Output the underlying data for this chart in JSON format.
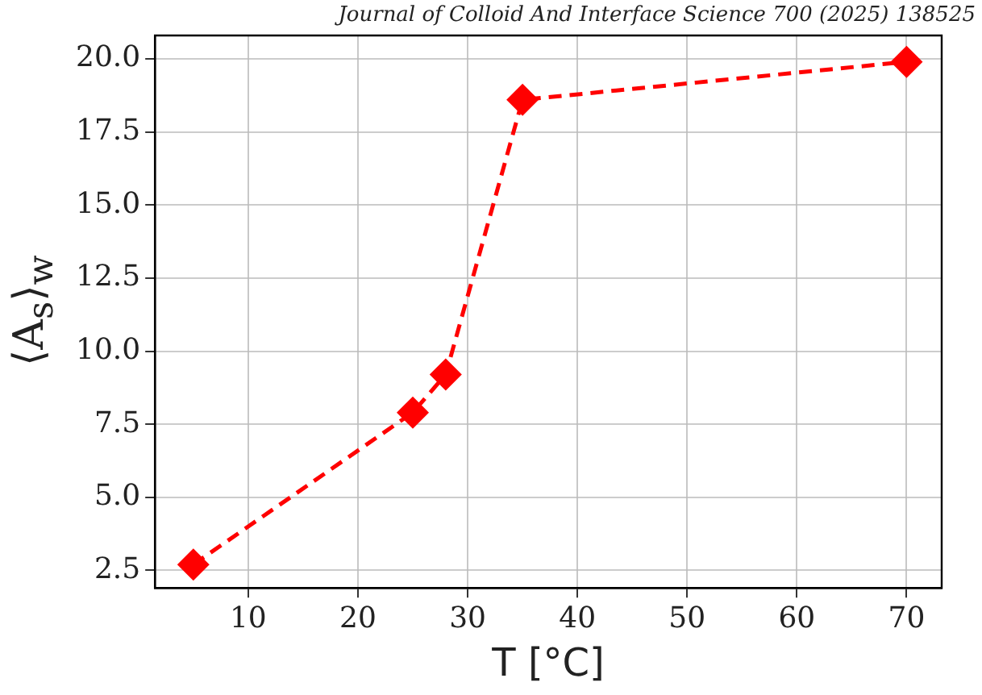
{
  "chart_data": {
    "type": "line",
    "xlabel": "T [°C]",
    "ylabel": "⟨A$_{s}$⟩$_{w}$",
    "annotations": [
      "Journal of Colloid And Interface Science 700 (2025) 138525"
    ],
    "x": [
      5,
      25,
      28,
      35,
      70
    ],
    "series": [
      {
        "color": "#ff0000",
        "values": [
          2.7,
          7.9,
          9.2,
          18.6,
          19.9
        ]
      }
    ],
    "xlim": [
      1.5,
      73.2
    ],
    "xticks": [
      10,
      20,
      30,
      40,
      50,
      60,
      70
    ],
    "ylim": [
      1.9,
      20.8
    ],
    "yticks": [
      {
        "value": 2.5,
        "label": "2.5"
      },
      {
        "value": 5,
        "label": "5.0"
      },
      {
        "value": 7.5,
        "label": "7.5"
      },
      {
        "value": 10,
        "label": "10.0"
      },
      {
        "value": 12.5,
        "label": "12.5"
      },
      {
        "value": 15,
        "label": "15.0"
      },
      {
        "value": 17.5,
        "label": "17.5"
      },
      {
        "value": 20,
        "label": "20.0"
      }
    ],
    "grid": true,
    "marker": "diamond",
    "line_style": "dashed",
    "legend": false
  }
}
